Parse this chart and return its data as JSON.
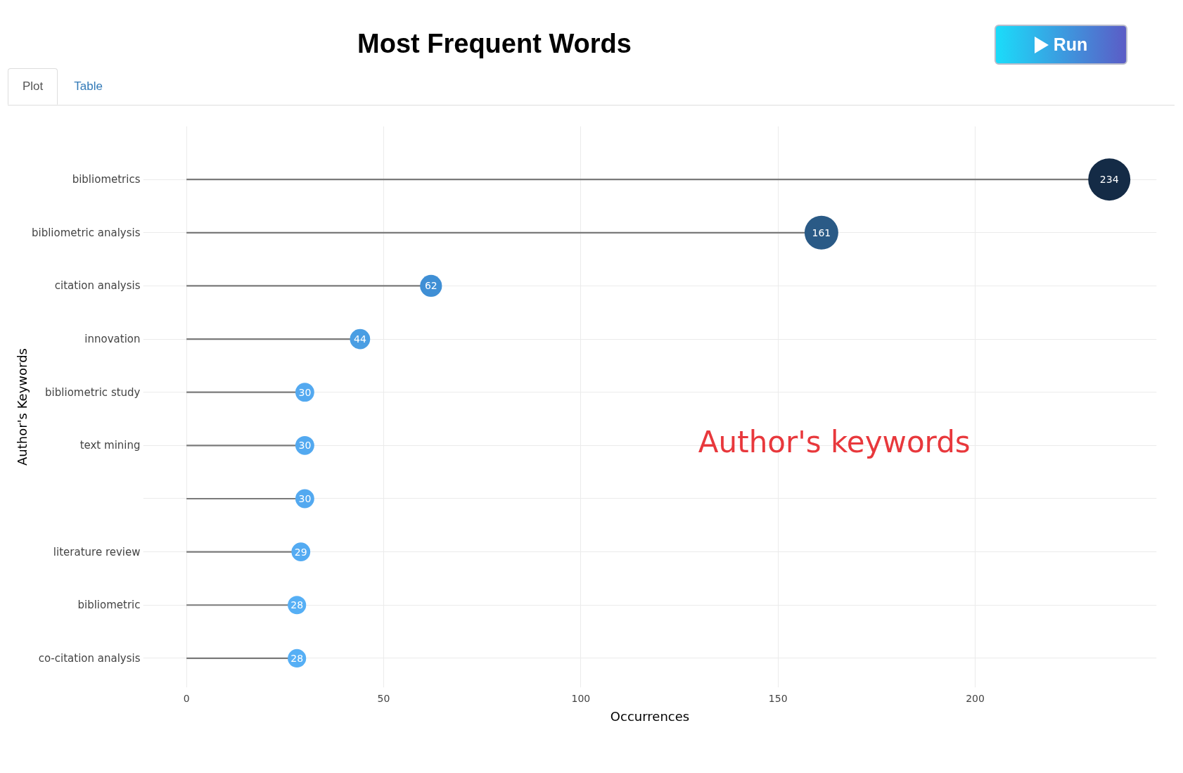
{
  "chart_data": {
    "type": "lollipop",
    "title": "Most Frequent Words",
    "xlabel": "Occurrences",
    "ylabel": "Author's Keywords",
    "orientation": "horizontal",
    "categories": [
      "bibliometrics",
      "bibliometric analysis",
      "citation analysis",
      "innovation",
      "bibliometric study",
      "text mining",
      null,
      "literature review",
      "bibliometric",
      "co-citation analysis"
    ],
    "values": [
      234,
      161,
      62,
      44,
      30,
      30,
      30,
      29,
      28,
      28
    ],
    "sizes": [
      1,
      0.64,
      0.27,
      0.23,
      0.2,
      0.2,
      0.2,
      0.2,
      0.19,
      0.19
    ],
    "colors": [
      "#142b46",
      "#2a5a86",
      "#3f8fd5",
      "#4a9ee3",
      "#53a9f0",
      "#53a9f0",
      "#53a9f0",
      "#54abf2",
      "#56aff5",
      "#56aff5"
    ],
    "xlim": [
      -11,
      246
    ],
    "xticks": [
      0,
      50,
      100,
      150,
      200
    ],
    "grid": true,
    "marker": "circle",
    "data_labels": true,
    "annotations": [
      "Author's keywords",
      "Plot",
      "Table",
      "Run"
    ]
  }
}
